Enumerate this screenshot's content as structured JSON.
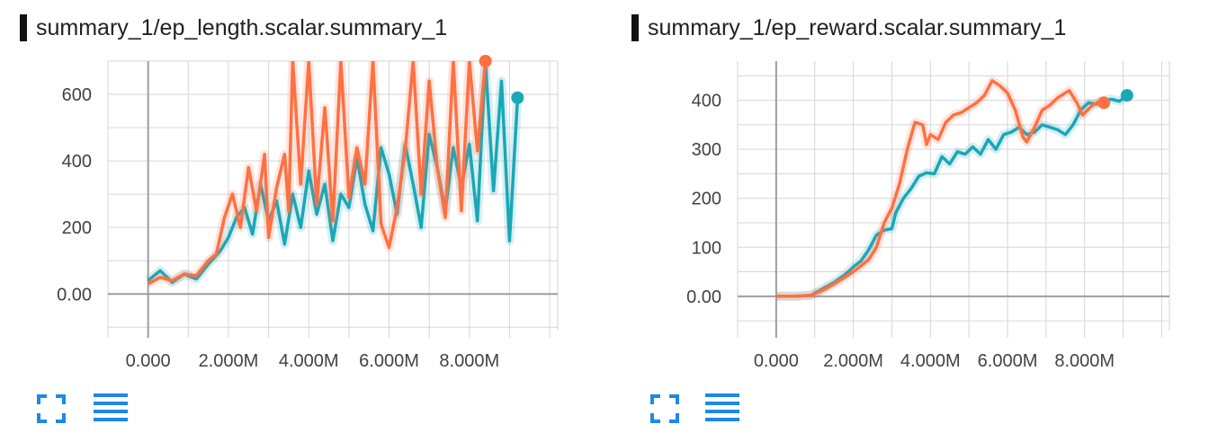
{
  "colors": {
    "teal": "#1aa7b7",
    "orange": "#ff7043",
    "icon": "#1e88e5",
    "grid": "#d6d6d6",
    "axis": "#9e9e9e"
  },
  "icons": {
    "expand": "fullscreen-icon",
    "lines": "list-lines-icon"
  },
  "charts": [
    {
      "title": "summary_1/ep_length.scalar.summary_1",
      "xticks": [
        "0.000",
        "2.000M",
        "4.000M",
        "6.000M",
        "8.000M"
      ],
      "yticks": [
        "0.00",
        "200",
        "400",
        "600"
      ]
    },
    {
      "title": "summary_1/ep_reward.scalar.summary_1",
      "xticks": [
        "0.000",
        "2.000M",
        "4.000M",
        "6.000M",
        "8.000M"
      ],
      "yticks": [
        "0.00",
        "100",
        "200",
        "300",
        "400"
      ]
    }
  ],
  "chart_data": [
    {
      "type": "line",
      "title": "summary_1/ep_length.scalar.summary_1",
      "xlabel": "",
      "ylabel": "",
      "xlim": [
        -1000000,
        10200000
      ],
      "ylim": [
        -110,
        700
      ],
      "grid": true,
      "series": [
        {
          "color": "#1aa7b7",
          "points": [
            [
              0,
              40
            ],
            [
              300000,
              70
            ],
            [
              600000,
              35
            ],
            [
              900000,
              60
            ],
            [
              1200000,
              45
            ],
            [
              1500000,
              90
            ],
            [
              1800000,
              130
            ],
            [
              2000000,
              170
            ],
            [
              2200000,
              230
            ],
            [
              2400000,
              260
            ],
            [
              2600000,
              180
            ],
            [
              2800000,
              330
            ],
            [
              3000000,
              220
            ],
            [
              3200000,
              280
            ],
            [
              3400000,
              150
            ],
            [
              3600000,
              300
            ],
            [
              3800000,
              200
            ],
            [
              4000000,
              370
            ],
            [
              4200000,
              240
            ],
            [
              4400000,
              330
            ],
            [
              4600000,
              160
            ],
            [
              4800000,
              300
            ],
            [
              5000000,
              260
            ],
            [
              5200000,
              410
            ],
            [
              5400000,
              270
            ],
            [
              5600000,
              190
            ],
            [
              5800000,
              440
            ],
            [
              6000000,
              360
            ],
            [
              6200000,
              240
            ],
            [
              6400000,
              450
            ],
            [
              6600000,
              330
            ],
            [
              6800000,
              200
            ],
            [
              7000000,
              480
            ],
            [
              7200000,
              380
            ],
            [
              7400000,
              250
            ],
            [
              7600000,
              440
            ],
            [
              7800000,
              320
            ],
            [
              8000000,
              450
            ],
            [
              8200000,
              220
            ],
            [
              8400000,
              700
            ],
            [
              8600000,
              310
            ],
            [
              8800000,
              640
            ],
            [
              9000000,
              160
            ],
            [
              9200000,
              590
            ]
          ]
        },
        {
          "color": "#ff7043",
          "points": [
            [
              0,
              30
            ],
            [
              300000,
              50
            ],
            [
              600000,
              40
            ],
            [
              900000,
              60
            ],
            [
              1200000,
              55
            ],
            [
              1500000,
              100
            ],
            [
              1700000,
              120
            ],
            [
              1900000,
              230
            ],
            [
              2100000,
              300
            ],
            [
              2300000,
              200
            ],
            [
              2500000,
              380
            ],
            [
              2700000,
              250
            ],
            [
              2900000,
              420
            ],
            [
              3000000,
              170
            ],
            [
              3200000,
              320
            ],
            [
              3400000,
              420
            ],
            [
              3500000,
              250
            ],
            [
              3600000,
              700
            ],
            [
              3800000,
              330
            ],
            [
              4000000,
              700
            ],
            [
              4200000,
              270
            ],
            [
              4400000,
              560
            ],
            [
              4600000,
              220
            ],
            [
              4800000,
              700
            ],
            [
              5000000,
              290
            ],
            [
              5200000,
              440
            ],
            [
              5400000,
              330
            ],
            [
              5600000,
              700
            ],
            [
              5800000,
              210
            ],
            [
              6000000,
              140
            ],
            [
              6200000,
              260
            ],
            [
              6400000,
              430
            ],
            [
              6600000,
              700
            ],
            [
              6800000,
              300
            ],
            [
              7000000,
              640
            ],
            [
              7200000,
              380
            ],
            [
              7400000,
              230
            ],
            [
              7600000,
              700
            ],
            [
              7800000,
              250
            ],
            [
              8000000,
              700
            ],
            [
              8200000,
              430
            ],
            [
              8400000,
              700
            ]
          ]
        }
      ]
    },
    {
      "type": "line",
      "title": "summary_1/ep_reward.scalar.summary_1",
      "xlabel": "",
      "ylabel": "",
      "xlim": [
        -1000000,
        10200000
      ],
      "ylim": [
        -70,
        480
      ],
      "grid": true,
      "series": [
        {
          "color": "#1aa7b7",
          "points": [
            [
              0,
              0
            ],
            [
              500000,
              0
            ],
            [
              900000,
              2
            ],
            [
              1200000,
              15
            ],
            [
              1500000,
              28
            ],
            [
              1800000,
              45
            ],
            [
              2000000,
              60
            ],
            [
              2200000,
              72
            ],
            [
              2400000,
              95
            ],
            [
              2600000,
              125
            ],
            [
              2800000,
              135
            ],
            [
              3000000,
              138
            ],
            [
              3100000,
              170
            ],
            [
              3300000,
              200
            ],
            [
              3500000,
              220
            ],
            [
              3700000,
              245
            ],
            [
              3900000,
              252
            ],
            [
              4100000,
              250
            ],
            [
              4300000,
              285
            ],
            [
              4500000,
              270
            ],
            [
              4700000,
              295
            ],
            [
              4900000,
              290
            ],
            [
              5100000,
              305
            ],
            [
              5300000,
              290
            ],
            [
              5500000,
              320
            ],
            [
              5700000,
              300
            ],
            [
              5900000,
              330
            ],
            [
              6100000,
              335
            ],
            [
              6300000,
              345
            ],
            [
              6500000,
              330
            ],
            [
              6700000,
              335
            ],
            [
              6900000,
              350
            ],
            [
              7100000,
              345
            ],
            [
              7300000,
              340
            ],
            [
              7500000,
              330
            ],
            [
              7700000,
              350
            ],
            [
              7900000,
              380
            ],
            [
              8100000,
              395
            ],
            [
              8300000,
              392
            ],
            [
              8500000,
              400
            ],
            [
              8700000,
              402
            ],
            [
              8900000,
              398
            ],
            [
              9100000,
              410
            ]
          ]
        },
        {
          "color": "#ff7043",
          "points": [
            [
              0,
              0
            ],
            [
              500000,
              0
            ],
            [
              900000,
              2
            ],
            [
              1200000,
              12
            ],
            [
              1500000,
              25
            ],
            [
              1800000,
              40
            ],
            [
              2000000,
              50
            ],
            [
              2200000,
              62
            ],
            [
              2400000,
              75
            ],
            [
              2600000,
              100
            ],
            [
              2800000,
              150
            ],
            [
              3000000,
              180
            ],
            [
              3200000,
              230
            ],
            [
              3400000,
              300
            ],
            [
              3600000,
              355
            ],
            [
              3800000,
              350
            ],
            [
              3900000,
              310
            ],
            [
              4000000,
              330
            ],
            [
              4200000,
              320
            ],
            [
              4400000,
              355
            ],
            [
              4600000,
              370
            ],
            [
              4800000,
              375
            ],
            [
              5000000,
              385
            ],
            [
              5200000,
              395
            ],
            [
              5400000,
              410
            ],
            [
              5600000,
              440
            ],
            [
              5800000,
              430
            ],
            [
              6000000,
              415
            ],
            [
              6200000,
              380
            ],
            [
              6400000,
              325
            ],
            [
              6500000,
              315
            ],
            [
              6700000,
              345
            ],
            [
              6900000,
              380
            ],
            [
              7100000,
              390
            ],
            [
              7300000,
              405
            ],
            [
              7600000,
              420
            ],
            [
              7800000,
              395
            ],
            [
              7950000,
              370
            ],
            [
              8200000,
              390
            ],
            [
              8400000,
              398
            ],
            [
              8500000,
              395
            ]
          ]
        }
      ]
    }
  ]
}
